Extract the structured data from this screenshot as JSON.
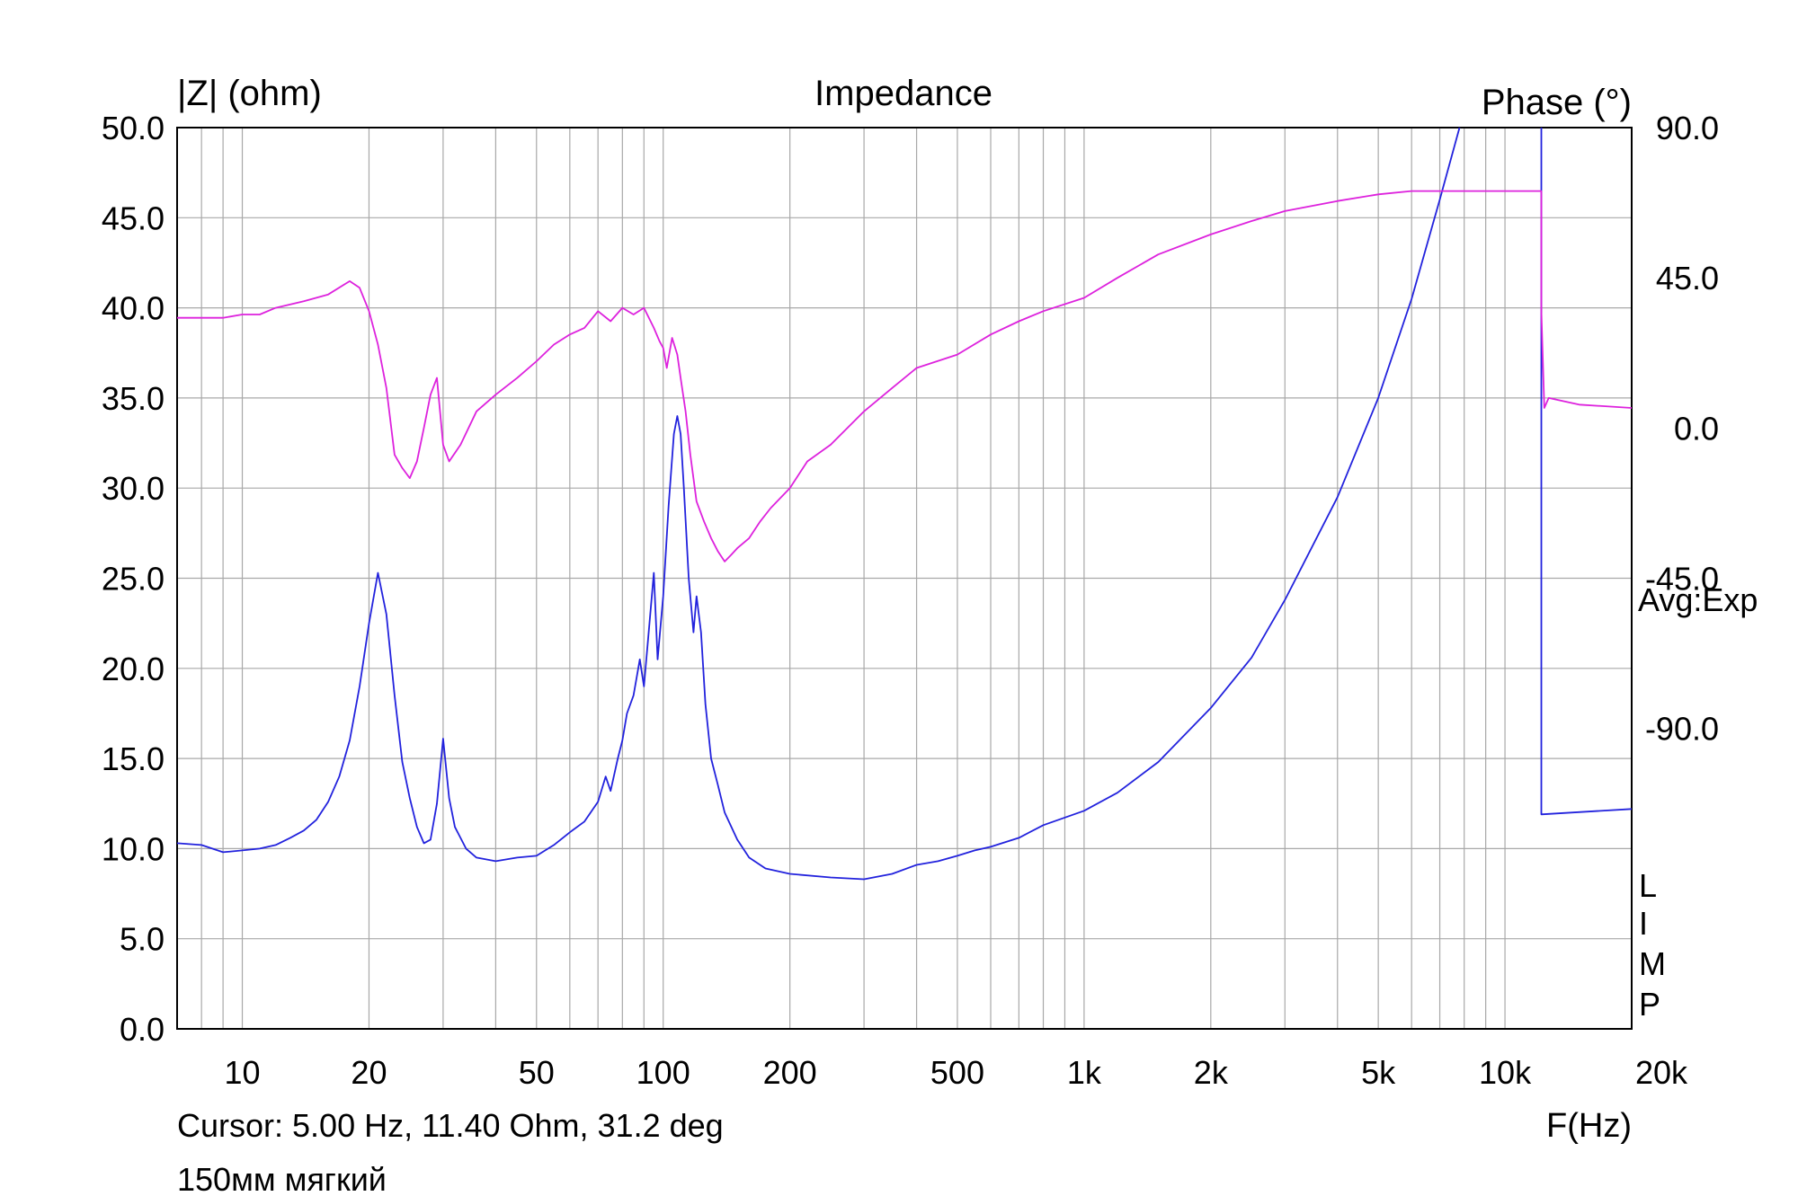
{
  "chart_data": {
    "type": "line",
    "title": "Impedance",
    "left_axis_label": "|Z| (ohm)",
    "right_axis_label": "Phase (°)",
    "xlabel": "F(Hz)",
    "x_scale": "log",
    "xlim": [
      7,
      20000
    ],
    "ylim": [
      0,
      50
    ],
    "phase_lim": [
      -180,
      90
    ],
    "grid": true,
    "x_ticks": [
      {
        "value": 10,
        "label": "10"
      },
      {
        "value": 20,
        "label": "20"
      },
      {
        "value": 50,
        "label": "50"
      },
      {
        "value": 100,
        "label": "100"
      },
      {
        "value": 200,
        "label": "200"
      },
      {
        "value": 500,
        "label": "500"
      },
      {
        "value": 1000,
        "label": "1k"
      },
      {
        "value": 2000,
        "label": "2k"
      },
      {
        "value": 5000,
        "label": "5k"
      },
      {
        "value": 10000,
        "label": "10k"
      },
      {
        "value": 20000,
        "label": "20k"
      }
    ],
    "y_ticks": [
      "0.0",
      "5.0",
      "10.0",
      "15.0",
      "20.0",
      "25.0",
      "30.0",
      "35.0",
      "40.0",
      "45.0",
      "50.0"
    ],
    "phase_ticks": [
      {
        "value": 90,
        "label": "90.0"
      },
      {
        "value": 45,
        "label": "45.0"
      },
      {
        "value": 0,
        "label": "0.0"
      },
      {
        "value": -45,
        "label": "-45.0"
      },
      {
        "value": -90,
        "label": "-90.0"
      }
    ],
    "series": [
      {
        "axis": "left",
        "color": "#2222dd",
        "points": [
          [
            7,
            10.3
          ],
          [
            8,
            10.2
          ],
          [
            9,
            9.8
          ],
          [
            10,
            9.9
          ],
          [
            11,
            10.0
          ],
          [
            12,
            10.2
          ],
          [
            13,
            10.6
          ],
          [
            14,
            11.0
          ],
          [
            15,
            11.6
          ],
          [
            16,
            12.6
          ],
          [
            17,
            14.0
          ],
          [
            18,
            16.0
          ],
          [
            19,
            19.0
          ],
          [
            20,
            22.5
          ],
          [
            21,
            25.3
          ],
          [
            22,
            23.0
          ],
          [
            23,
            18.5
          ],
          [
            24,
            14.8
          ],
          [
            25,
            12.8
          ],
          [
            26,
            11.2
          ],
          [
            27,
            10.3
          ],
          [
            28,
            10.5
          ],
          [
            29,
            12.5
          ],
          [
            30,
            16.1
          ],
          [
            31,
            12.8
          ],
          [
            32,
            11.2
          ],
          [
            34,
            10.0
          ],
          [
            36,
            9.5
          ],
          [
            40,
            9.3
          ],
          [
            45,
            9.5
          ],
          [
            50,
            9.6
          ],
          [
            55,
            10.2
          ],
          [
            60,
            10.9
          ],
          [
            65,
            11.5
          ],
          [
            70,
            12.6
          ],
          [
            73,
            14.0
          ],
          [
            75,
            13.2
          ],
          [
            78,
            15.0
          ],
          [
            80,
            16.0
          ],
          [
            82,
            17.5
          ],
          [
            85,
            18.5
          ],
          [
            88,
            20.5
          ],
          [
            90,
            19.0
          ],
          [
            92,
            21.5
          ],
          [
            95,
            25.3
          ],
          [
            97,
            20.5
          ],
          [
            100,
            24.0
          ],
          [
            103,
            29.0
          ],
          [
            106,
            33.0
          ],
          [
            108,
            34.0
          ],
          [
            110,
            33.0
          ],
          [
            112,
            30.0
          ],
          [
            115,
            25.0
          ],
          [
            118,
            22.0
          ],
          [
            120,
            24.0
          ],
          [
            123,
            22.0
          ],
          [
            126,
            18.0
          ],
          [
            130,
            15.0
          ],
          [
            135,
            13.5
          ],
          [
            140,
            12.0
          ],
          [
            150,
            10.5
          ],
          [
            160,
            9.5
          ],
          [
            175,
            8.9
          ],
          [
            200,
            8.6
          ],
          [
            250,
            8.4
          ],
          [
            300,
            8.3
          ],
          [
            350,
            8.6
          ],
          [
            400,
            9.1
          ],
          [
            450,
            9.3
          ],
          [
            500,
            9.6
          ],
          [
            550,
            9.9
          ],
          [
            600,
            10.1
          ],
          [
            700,
            10.6
          ],
          [
            800,
            11.3
          ],
          [
            1000,
            12.1
          ],
          [
            1200,
            13.1
          ],
          [
            1500,
            14.8
          ],
          [
            2000,
            17.8
          ],
          [
            2500,
            20.6
          ],
          [
            3000,
            23.8
          ],
          [
            4000,
            29.5
          ],
          [
            5000,
            35.0
          ],
          [
            6000,
            40.5
          ],
          [
            7000,
            46.0
          ],
          [
            7800,
            50.0
          ]
        ]
      },
      {
        "axis": "left",
        "color": "#2222dd",
        "points": [
          [
            12200,
            50.0
          ],
          [
            12200,
            11.9
          ],
          [
            20000,
            12.2
          ]
        ]
      },
      {
        "axis": "right",
        "color": "#dd22dd",
        "points": [
          [
            7,
            33
          ],
          [
            9,
            33
          ],
          [
            10,
            34
          ],
          [
            11,
            34
          ],
          [
            12,
            36
          ],
          [
            14,
            38
          ],
          [
            16,
            40
          ],
          [
            18,
            44
          ],
          [
            19,
            42
          ],
          [
            20,
            35
          ],
          [
            21,
            25
          ],
          [
            22,
            12
          ],
          [
            23,
            -8
          ],
          [
            24,
            -12
          ],
          [
            25,
            -15
          ],
          [
            26,
            -10
          ],
          [
            27,
            0
          ],
          [
            28,
            10
          ],
          [
            29,
            15
          ],
          [
            30,
            -5
          ],
          [
            31,
            -10
          ],
          [
            33,
            -5
          ],
          [
            36,
            5
          ],
          [
            40,
            10
          ],
          [
            45,
            15
          ],
          [
            50,
            20
          ],
          [
            55,
            25
          ],
          [
            60,
            28
          ],
          [
            65,
            30
          ],
          [
            70,
            35
          ],
          [
            75,
            32
          ],
          [
            80,
            36
          ],
          [
            85,
            34
          ],
          [
            90,
            36
          ],
          [
            95,
            30
          ],
          [
            98,
            26
          ],
          [
            100,
            24
          ],
          [
            102,
            18
          ],
          [
            105,
            27
          ],
          [
            108,
            22
          ],
          [
            110,
            15
          ],
          [
            113,
            5
          ],
          [
            116,
            -8
          ],
          [
            120,
            -22
          ],
          [
            125,
            -28
          ],
          [
            130,
            -33
          ],
          [
            135,
            -37
          ],
          [
            140,
            -40
          ],
          [
            145,
            -38
          ],
          [
            150,
            -36
          ],
          [
            160,
            -33
          ],
          [
            170,
            -28
          ],
          [
            180,
            -24
          ],
          [
            200,
            -18
          ],
          [
            220,
            -10
          ],
          [
            250,
            -5
          ],
          [
            300,
            5
          ],
          [
            350,
            12
          ],
          [
            400,
            18
          ],
          [
            500,
            22
          ],
          [
            600,
            28
          ],
          [
            700,
            32
          ],
          [
            800,
            35
          ],
          [
            1000,
            39
          ],
          [
            1200,
            45
          ],
          [
            1500,
            52
          ],
          [
            2000,
            58
          ],
          [
            2500,
            62
          ],
          [
            3000,
            65
          ],
          [
            4000,
            68
          ],
          [
            5000,
            70
          ],
          [
            6000,
            71
          ],
          [
            8000,
            71
          ],
          [
            10000,
            71
          ],
          [
            12000,
            71
          ],
          [
            12200,
            71
          ],
          [
            12200,
            35
          ],
          [
            12400,
            6
          ],
          [
            12700,
            9
          ],
          [
            15000,
            7
          ],
          [
            20000,
            6
          ]
        ]
      }
    ]
  },
  "annotations": {
    "avg_label": "Avg:Exp",
    "limp_letters": [
      "L",
      "I",
      "M",
      "P"
    ],
    "cursor_text": "Cursor: 5.00 Hz, 11.40 Ohm, 31.2 deg",
    "caption": "150мм мягкий"
  }
}
